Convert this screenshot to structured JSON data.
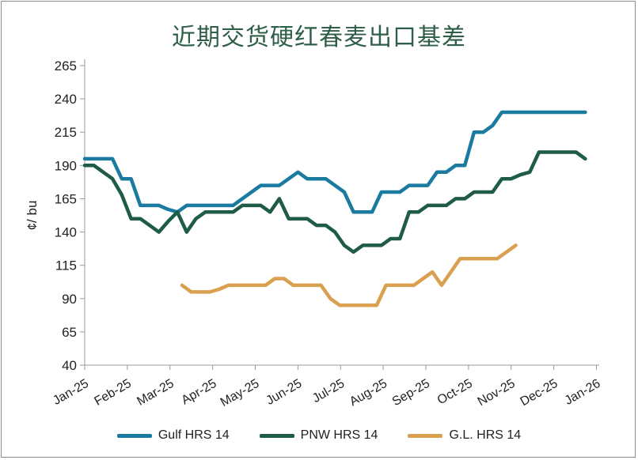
{
  "chart_data": {
    "type": "line",
    "title": "近期交货硬红春麦出口基差",
    "ylabel": "¢/ bu",
    "xlabel": "",
    "ylim": [
      40,
      265
    ],
    "yticks": [
      40,
      65,
      90,
      115,
      140,
      165,
      190,
      215,
      240,
      265
    ],
    "categories": [
      "Jan-25",
      "Feb-25",
      "Mar-25",
      "Apr-25",
      "May-25",
      "Jun-25",
      "Jul-25",
      "Aug-25",
      "Sep-25",
      "Oct-25",
      "Nov-25",
      "Dec-25",
      "Jan-26"
    ],
    "x_unit": "weeks since Jan-25",
    "series": [
      {
        "name": "Gulf HRS 14",
        "color": "#1a7aa0",
        "points": [
          [
            0,
            195
          ],
          [
            1,
            195
          ],
          [
            2,
            195
          ],
          [
            3,
            195
          ],
          [
            4,
            180
          ],
          [
            5,
            180
          ],
          [
            6,
            160
          ],
          [
            7,
            160
          ],
          [
            8,
            160
          ],
          [
            9,
            157
          ],
          [
            10,
            155
          ],
          [
            11,
            160
          ],
          [
            12,
            160
          ],
          [
            13,
            160
          ],
          [
            14,
            160
          ],
          [
            15,
            160
          ],
          [
            16,
            160
          ],
          [
            17,
            165
          ],
          [
            18,
            170
          ],
          [
            19,
            175
          ],
          [
            20,
            175
          ],
          [
            21,
            175
          ],
          [
            22,
            180
          ],
          [
            23,
            185
          ],
          [
            24,
            180
          ],
          [
            25,
            180
          ],
          [
            26,
            180
          ],
          [
            27,
            175
          ],
          [
            28,
            170
          ],
          [
            29,
            155
          ],
          [
            30,
            155
          ],
          [
            31,
            155
          ],
          [
            32,
            170
          ],
          [
            33,
            170
          ],
          [
            34,
            170
          ],
          [
            35,
            175
          ],
          [
            36,
            175
          ],
          [
            37,
            175
          ],
          [
            38,
            185
          ],
          [
            39,
            185
          ],
          [
            40,
            190
          ],
          [
            41,
            190
          ],
          [
            42,
            215
          ],
          [
            43,
            215
          ],
          [
            44,
            220
          ],
          [
            45,
            230
          ],
          [
            46,
            230
          ],
          [
            47,
            230
          ],
          [
            48,
            230
          ],
          [
            49,
            230
          ],
          [
            50,
            230
          ],
          [
            51,
            230
          ],
          [
            52,
            230
          ],
          [
            53,
            230
          ],
          [
            54,
            230
          ]
        ]
      },
      {
        "name": "PNW HRS 14",
        "color": "#1f5c45",
        "points": [
          [
            0,
            190
          ],
          [
            1,
            190
          ],
          [
            2,
            185
          ],
          [
            3,
            180
          ],
          [
            4,
            168
          ],
          [
            5,
            150
          ],
          [
            6,
            150
          ],
          [
            7,
            145
          ],
          [
            8,
            140
          ],
          [
            9,
            148
          ],
          [
            10,
            155
          ],
          [
            11,
            140
          ],
          [
            12,
            150
          ],
          [
            13,
            155
          ],
          [
            14,
            155
          ],
          [
            15,
            155
          ],
          [
            16,
            155
          ],
          [
            17,
            160
          ],
          [
            18,
            160
          ],
          [
            19,
            160
          ],
          [
            20,
            155
          ],
          [
            21,
            165
          ],
          [
            22,
            150
          ],
          [
            23,
            150
          ],
          [
            24,
            150
          ],
          [
            25,
            145
          ],
          [
            26,
            145
          ],
          [
            27,
            140
          ],
          [
            28,
            130
          ],
          [
            29,
            125
          ],
          [
            30,
            130
          ],
          [
            31,
            130
          ],
          [
            32,
            130
          ],
          [
            33,
            135
          ],
          [
            34,
            135
          ],
          [
            35,
            155
          ],
          [
            36,
            155
          ],
          [
            37,
            160
          ],
          [
            38,
            160
          ],
          [
            39,
            160
          ],
          [
            40,
            165
          ],
          [
            41,
            165
          ],
          [
            42,
            170
          ],
          [
            43,
            170
          ],
          [
            44,
            170
          ],
          [
            45,
            180
          ],
          [
            46,
            180
          ],
          [
            47,
            183
          ],
          [
            48,
            185
          ],
          [
            49,
            200
          ],
          [
            50,
            200
          ],
          [
            51,
            200
          ],
          [
            52,
            200
          ],
          [
            53,
            200
          ],
          [
            54,
            195
          ]
        ]
      },
      {
        "name": "G.L. HRS 14",
        "color": "#d9a050",
        "points": [
          [
            10.5,
            100
          ],
          [
            11.5,
            95
          ],
          [
            12.5,
            95
          ],
          [
            13.5,
            95
          ],
          [
            14.5,
            97
          ],
          [
            15.5,
            100
          ],
          [
            16.5,
            100
          ],
          [
            17.5,
            100
          ],
          [
            18.5,
            100
          ],
          [
            19.5,
            100
          ],
          [
            20.5,
            105
          ],
          [
            21.5,
            105
          ],
          [
            22.5,
            100
          ],
          [
            23.5,
            100
          ],
          [
            24.5,
            100
          ],
          [
            25.5,
            100
          ],
          [
            26.5,
            90
          ],
          [
            27.5,
            85
          ],
          [
            28.5,
            85
          ],
          [
            29.5,
            85
          ],
          [
            30.5,
            85
          ],
          [
            31.5,
            85
          ],
          [
            32.5,
            100
          ],
          [
            33.5,
            100
          ],
          [
            34.5,
            100
          ],
          [
            35.5,
            100
          ],
          [
            36.5,
            105
          ],
          [
            37.5,
            110
          ],
          [
            38.5,
            100
          ],
          [
            39.5,
            110
          ],
          [
            40.5,
            120
          ],
          [
            41.5,
            120
          ],
          [
            42.5,
            120
          ],
          [
            43.5,
            120
          ],
          [
            44.5,
            120
          ],
          [
            45.5,
            125
          ],
          [
            46.5,
            130
          ]
        ]
      }
    ],
    "grid": false,
    "legend_position": "bottom"
  }
}
